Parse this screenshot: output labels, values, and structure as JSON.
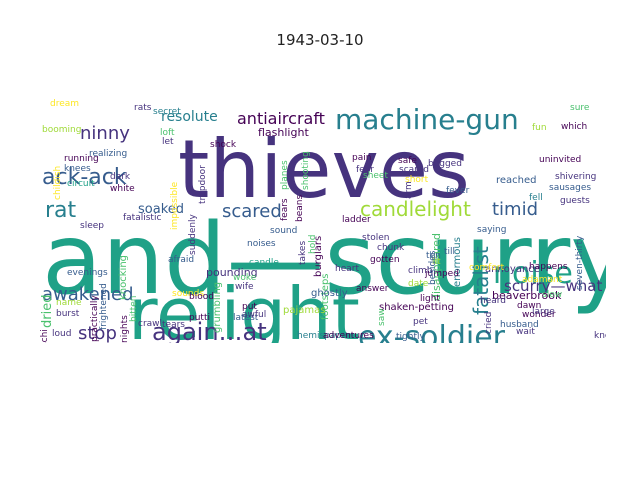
{
  "title": "1943-03-10",
  "palette": [
    "#440154",
    "#46337e",
    "#365c8d",
    "#277f8e",
    "#1fa187",
    "#4ac16d",
    "#a0da39",
    "#fde725"
  ],
  "words": [
    {
      "text": "and—scurry",
      "color": "#1fa187"
    },
    {
      "text": "thieves",
      "color": "#46337e"
    },
    {
      "text": "relight",
      "color": "#1fa187"
    },
    {
      "text": "ex-soldier",
      "color": "#277f8e"
    },
    {
      "text": "machine-gun",
      "color": "#277f8e"
    },
    {
      "text": "again…at",
      "color": "#46337e"
    },
    {
      "text": "ack-ack",
      "color": "#365c8d"
    },
    {
      "text": "noise",
      "color": "#1fa187"
    },
    {
      "text": "rat",
      "color": "#277f8e"
    },
    {
      "text": "candlelight",
      "color": "#a0da39"
    },
    {
      "text": "timid",
      "color": "#365c8d"
    },
    {
      "text": "scared",
      "color": "#365c8d"
    },
    {
      "text": "ninny",
      "color": "#46337e"
    },
    {
      "text": "awakened",
      "color": "#365c8d"
    },
    {
      "text": "stop",
      "color": "#46337e"
    },
    {
      "text": "fatalist",
      "color": "#277f8e"
    },
    {
      "text": "scurry—what",
      "color": "#46337e"
    },
    {
      "text": "antiaircraft",
      "color": "#440154"
    },
    {
      "text": "resolute",
      "color": "#277f8e"
    },
    {
      "text": "soaked",
      "color": "#365c8d"
    },
    {
      "text": "dried",
      "color": "#4ac16d"
    },
    {
      "text": "flashlight",
      "color": "#440154"
    },
    {
      "text": "beaverbrook",
      "color": "#440154"
    },
    {
      "text": "shaken-petting",
      "color": "#440154"
    },
    {
      "text": "annoyance",
      "color": "#46337e"
    },
    {
      "text": "disappeared",
      "color": "#4ac16d"
    },
    {
      "text": "enormous",
      "color": "#277f8e"
    },
    {
      "text": "footsteps",
      "color": "#4ac16d"
    },
    {
      "text": "pounding",
      "color": "#46337e"
    },
    {
      "text": "ghostly",
      "color": "#365c8d"
    },
    {
      "text": "burglars",
      "color": "#440154"
    },
    {
      "text": "fatalistic",
      "color": "#46337e"
    },
    {
      "text": "knocking",
      "color": "#4ac16d"
    },
    {
      "text": "trapdoor",
      "color": "#46337e"
    },
    {
      "text": "shivering",
      "color": "#46337e"
    },
    {
      "text": "sausages",
      "color": "#365c8d"
    },
    {
      "text": "uninvited",
      "color": "#440154"
    },
    {
      "text": "reached",
      "color": "#365c8d"
    },
    {
      "text": "guests",
      "color": "#46337e"
    },
    {
      "text": "seven-thirty",
      "color": "#365c8d"
    },
    {
      "text": "hemispapers",
      "color": "#277f8e"
    },
    {
      "text": "adventures",
      "color": "#440154"
    },
    {
      "text": "pajamas",
      "color": "#a0da39"
    },
    {
      "text": "latest",
      "color": "#365c8d"
    },
    {
      "text": "grumbling",
      "color": "#4ac16d"
    },
    {
      "text": "frightened",
      "color": "#365c8d"
    },
    {
      "text": "practically",
      "color": "#440154"
    },
    {
      "text": "evenings",
      "color": "#365c8d"
    },
    {
      "text": "realizing",
      "color": "#365c8d"
    },
    {
      "text": "running",
      "color": "#440154"
    },
    {
      "text": "booming",
      "color": "#a0da39"
    },
    {
      "text": "secret",
      "color": "#277f8e"
    },
    {
      "text": "rats",
      "color": "#46337e"
    },
    {
      "text": "loft",
      "color": "#4ac16d"
    },
    {
      "text": "let",
      "color": "#46337e"
    },
    {
      "text": "shock",
      "color": "#440154"
    },
    {
      "text": "knees",
      "color": "#365c8d"
    },
    {
      "text": "dark",
      "color": "#46337e"
    },
    {
      "text": "white",
      "color": "#440154"
    },
    {
      "text": "circuit",
      "color": "#1fa187"
    },
    {
      "text": "childish",
      "color": "#fde725"
    },
    {
      "text": "sleep",
      "color": "#46337e"
    },
    {
      "text": "name",
      "color": "#a0da39"
    },
    {
      "text": "burst",
      "color": "#46337e"
    },
    {
      "text": "loud",
      "color": "#46337e"
    },
    {
      "text": "crawl",
      "color": "#46337e"
    },
    {
      "text": "nights",
      "color": "#440154"
    },
    {
      "text": "bitten",
      "color": "#4ac16d"
    },
    {
      "text": "sounds",
      "color": "#fde725"
    },
    {
      "text": "blood",
      "color": "#440154"
    },
    {
      "text": "putti",
      "color": "#440154"
    },
    {
      "text": "wife",
      "color": "#46337e"
    },
    {
      "text": "woke",
      "color": "#4ac16d"
    },
    {
      "text": "candle",
      "color": "#1fa187"
    },
    {
      "text": "noises",
      "color": "#365c8d"
    },
    {
      "text": "sound",
      "color": "#365c8d"
    },
    {
      "text": "fears",
      "color": "#440154"
    },
    {
      "text": "planes",
      "color": "#4ac16d"
    },
    {
      "text": "shooting",
      "color": "#4ac16d"
    },
    {
      "text": "beans",
      "color": "#440154"
    },
    {
      "text": "ladder",
      "color": "#440154"
    },
    {
      "text": "stolen",
      "color": "#46337e"
    },
    {
      "text": "gotten",
      "color": "#440154"
    },
    {
      "text": "chunk",
      "color": "#46337e"
    },
    {
      "text": "climb",
      "color": "#46337e"
    },
    {
      "text": "jumped",
      "color": "#440154"
    },
    {
      "text": "date",
      "color": "#a0da39"
    },
    {
      "text": "lit",
      "color": "#a0da39"
    },
    {
      "text": "ten",
      "color": "#365c8d"
    },
    {
      "text": "till",
      "color": "#365c8d"
    },
    {
      "text": "saying",
      "color": "#365c8d"
    },
    {
      "text": "adamant",
      "color": "#fde725"
    },
    {
      "text": "cried",
      "color": "#46337e"
    },
    {
      "text": "husband",
      "color": "#365c8d"
    },
    {
      "text": "wonder",
      "color": "#440154"
    },
    {
      "text": "wait",
      "color": "#46337e"
    },
    {
      "text": "fire",
      "color": "#440154"
    },
    {
      "text": "large",
      "color": "#46337e"
    },
    {
      "text": "slew",
      "color": "#4ac16d"
    },
    {
      "text": "dawn",
      "color": "#440154"
    },
    {
      "text": "pain",
      "color": "#440154"
    },
    {
      "text": "fear",
      "color": "#46337e"
    },
    {
      "text": "sheet",
      "color": "#4ac16d"
    },
    {
      "text": "short",
      "color": "#fde725"
    },
    {
      "text": "arm",
      "color": "#46337e"
    },
    {
      "text": "fever",
      "color": "#365c8d"
    },
    {
      "text": "safe",
      "color": "#440154"
    },
    {
      "text": "scared",
      "color": "#46337e"
    },
    {
      "text": "begged",
      "color": "#46337e"
    },
    {
      "text": "sure",
      "color": "#4ac16d"
    },
    {
      "text": "which",
      "color": "#440154"
    },
    {
      "text": "fun",
      "color": "#a0da39"
    },
    {
      "text": "heard",
      "color": "#46337e"
    },
    {
      "text": "comfort",
      "color": "#fde725"
    },
    {
      "text": "light",
      "color": "#440154"
    },
    {
      "text": "besides",
      "color": "#365c8d"
    },
    {
      "text": "pet",
      "color": "#46337e"
    },
    {
      "text": "tightly",
      "color": "#365c8d"
    },
    {
      "text": "answer",
      "color": "#440154"
    },
    {
      "text": "takes",
      "color": "#46337e"
    },
    {
      "text": "afraid",
      "color": "#365c8d"
    },
    {
      "text": "awful",
      "color": "#46337e"
    },
    {
      "text": "heart",
      "color": "#46337e"
    },
    {
      "text": "impossible",
      "color": "#fde725"
    },
    {
      "text": "suddenly",
      "color": "#46337e"
    },
    {
      "text": "put",
      "color": "#440154"
    },
    {
      "text": "mouschi",
      "color": "#440154"
    },
    {
      "text": "tears",
      "color": "#46337e"
    },
    {
      "text": "hold",
      "color": "#4ac16d"
    },
    {
      "text": "happens",
      "color": "#440154"
    },
    {
      "text": "fell",
      "color": "#277f8e"
    },
    {
      "text": "saw",
      "color": "#4ac16d"
    },
    {
      "text": "knew",
      "color": "#46337e"
    },
    {
      "text": "dream",
      "color": "#fde725"
    }
  ]
}
